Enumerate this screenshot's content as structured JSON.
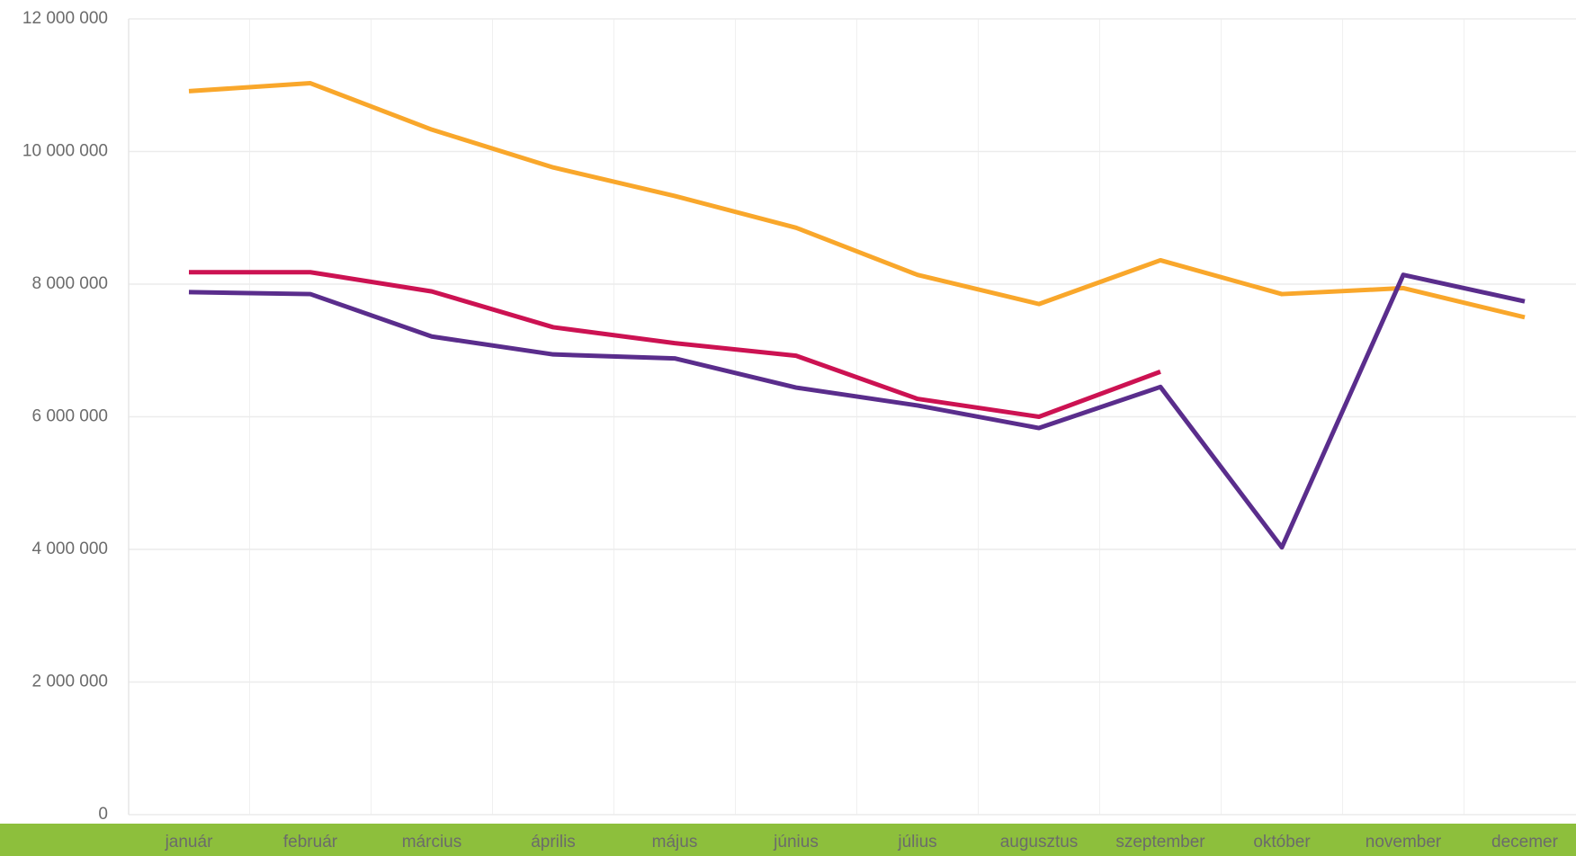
{
  "chart_data": {
    "type": "line",
    "categories": [
      "január",
      "február",
      "március",
      "április",
      "május",
      "június",
      "július",
      "augusztus",
      "szeptember",
      "október",
      "november",
      "decemer"
    ],
    "series": [
      {
        "color": "#f9a72b",
        "values": [
          10910000,
          11030000,
          10330000,
          9760000,
          9330000,
          8850000,
          8140000,
          7700000,
          8360000,
          7850000,
          7940000,
          7500000
        ]
      },
      {
        "color": "#cc1252",
        "values": [
          8180000,
          8180000,
          7890000,
          7350000,
          7110000,
          6920000,
          6270000,
          6000000,
          6680000,
          null,
          null,
          null
        ]
      },
      {
        "color": "#5a2d8c",
        "values": [
          7880000,
          7850000,
          7210000,
          6940000,
          6880000,
          6440000,
          6170000,
          5830000,
          6450000,
          4030000,
          8140000,
          7740000
        ]
      }
    ],
    "ylim": [
      0,
      12000000
    ],
    "yticks": [
      {
        "value": 0,
        "label": "0"
      },
      {
        "value": 2000000,
        "label": "2 000 000"
      },
      {
        "value": 4000000,
        "label": "4 000 000"
      },
      {
        "value": 6000000,
        "label": "6 000 000"
      },
      {
        "value": 8000000,
        "label": "8 000 000"
      },
      {
        "value": 10000000,
        "label": "10 000 000"
      },
      {
        "value": 12000000,
        "label": "12 000 000"
      }
    ],
    "grid": true
  }
}
